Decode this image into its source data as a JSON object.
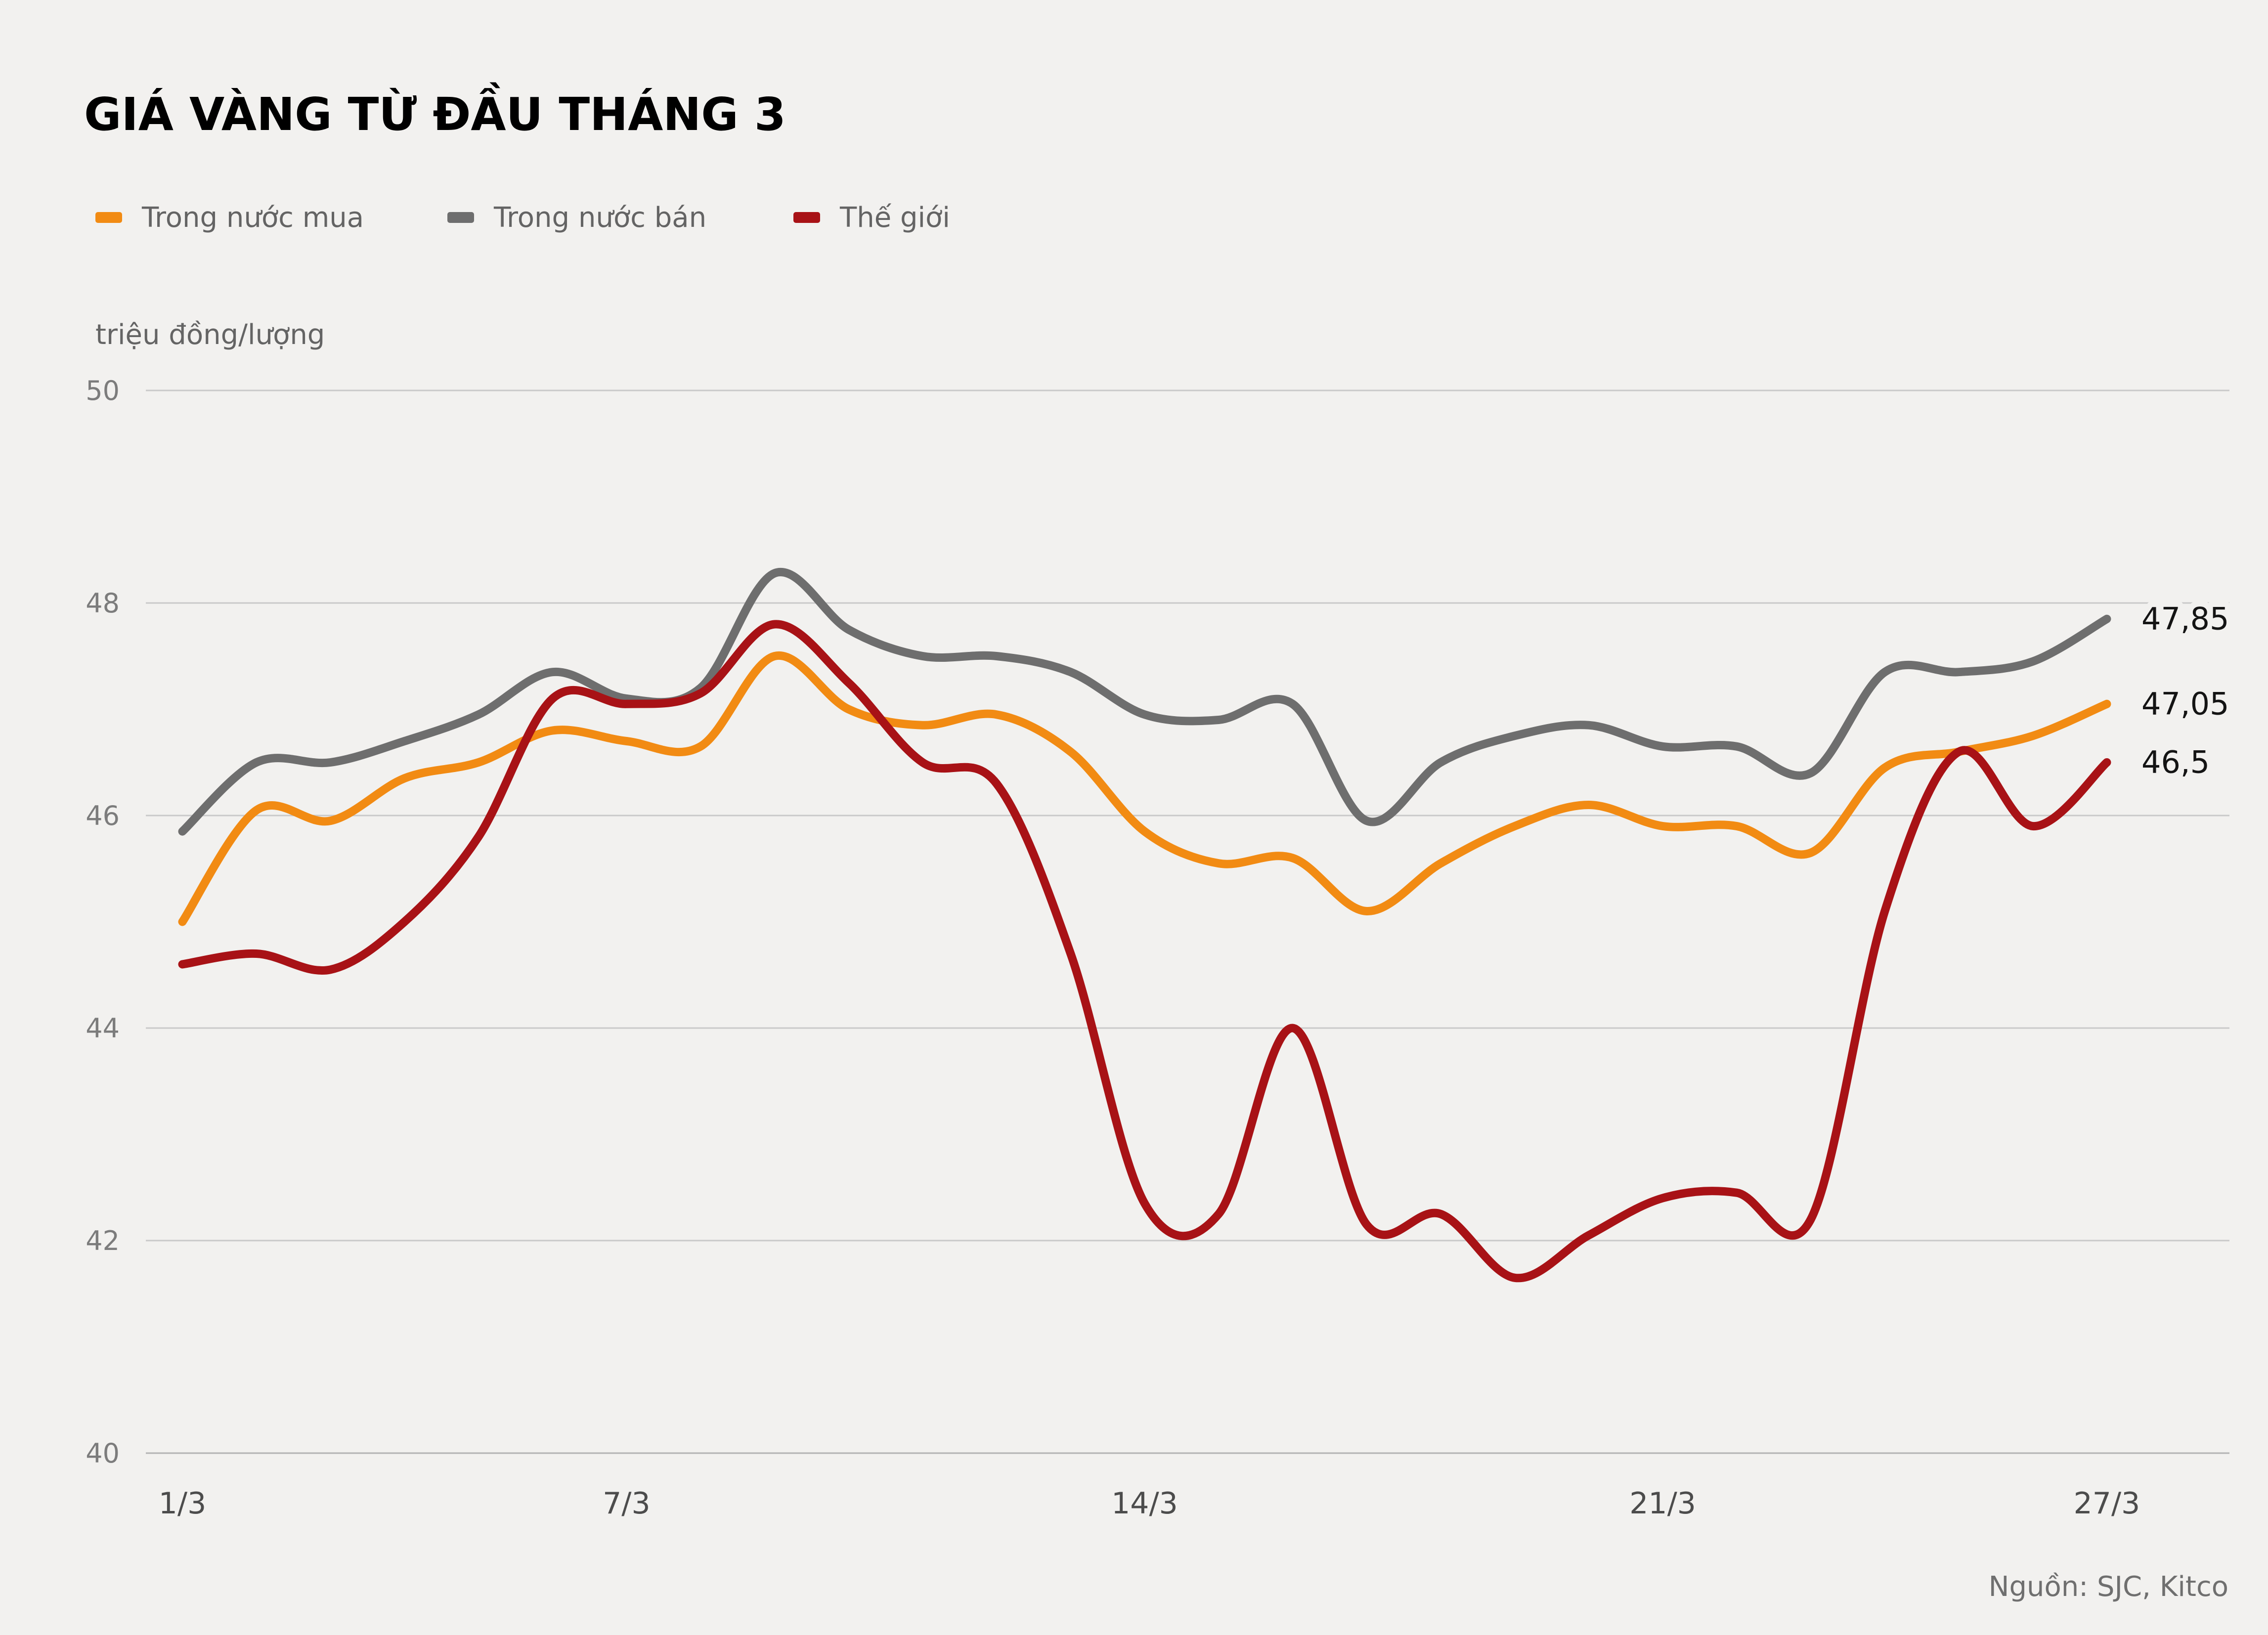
{
  "title": "GIÁ VÀNG TỪ ĐẦU THÁNG 3",
  "unit_label": "triệu đồng/lượng",
  "source_label": "Nguồn: SJC, Kitco",
  "colors": {
    "background": "#F2F1EF",
    "gridline": "#C9C9C9",
    "domestic_buy": "#F28B13",
    "domestic_sell": "#6E6E6E",
    "world": "#A81216"
  },
  "legend": [
    {
      "label": "Trong nước mua",
      "color": "#F28B13"
    },
    {
      "label": "Trong nước bán",
      "color": "#6E6E6E"
    },
    {
      "label": "Thế giới",
      "color": "#A81216"
    }
  ],
  "chart_data": {
    "type": "line",
    "title": "GIÁ VÀNG TỪ ĐẦU THÁNG 3",
    "ylabel": "triệu đồng/lượng",
    "ylim": [
      40,
      50
    ],
    "grid": "horizontal",
    "legend_position": "top",
    "y_ticks": [
      "40",
      "42",
      "44",
      "46",
      "48",
      "50"
    ],
    "y_tick_values": [
      40,
      42,
      44,
      46,
      48,
      50
    ],
    "x_days": [
      1,
      2,
      3,
      4,
      5,
      6,
      7,
      8,
      9,
      10,
      11,
      12,
      13,
      14,
      15,
      16,
      17,
      18,
      19,
      20,
      21,
      22,
      23,
      24,
      25,
      26,
      27
    ],
    "x_ticks": [
      {
        "label": "1/3",
        "day": 1
      },
      {
        "label": "7/3",
        "day": 7
      },
      {
        "label": "14/3",
        "day": 14
      },
      {
        "label": "21/3",
        "day": 21
      },
      {
        "label": "27/3",
        "day": 27
      }
    ],
    "series": [
      {
        "name": "Trong nước mua",
        "color": "#F28B13",
        "end_label": "47,05",
        "values": [
          45.0,
          46.05,
          45.95,
          46.35,
          46.5,
          46.8,
          46.7,
          46.65,
          47.5,
          47.0,
          46.85,
          46.95,
          46.6,
          45.85,
          45.55,
          45.6,
          45.1,
          45.55,
          45.9,
          46.1,
          45.9,
          45.9,
          45.65,
          46.45,
          46.6,
          46.75,
          47.05
        ]
      },
      {
        "name": "Trong nước bán",
        "color": "#6E6E6E",
        "end_label": "47,85",
        "values": [
          45.85,
          46.5,
          46.5,
          46.7,
          46.95,
          47.35,
          47.1,
          47.2,
          48.28,
          47.75,
          47.5,
          47.5,
          47.35,
          46.95,
          46.9,
          47.05,
          45.95,
          46.5,
          46.75,
          46.85,
          46.65,
          46.65,
          46.4,
          47.35,
          47.35,
          47.45,
          47.85
        ]
      },
      {
        "name": "Thế giới",
        "color": "#A81216",
        "end_label": "46,5",
        "values": [
          44.6,
          44.7,
          44.55,
          45.0,
          45.8,
          47.1,
          47.05,
          47.15,
          47.8,
          47.25,
          46.5,
          46.3,
          44.7,
          42.35,
          42.25,
          44.0,
          42.15,
          42.25,
          41.65,
          42.05,
          42.4,
          42.45,
          42.2,
          45.1,
          46.6,
          45.9,
          46.5
        ]
      }
    ]
  }
}
